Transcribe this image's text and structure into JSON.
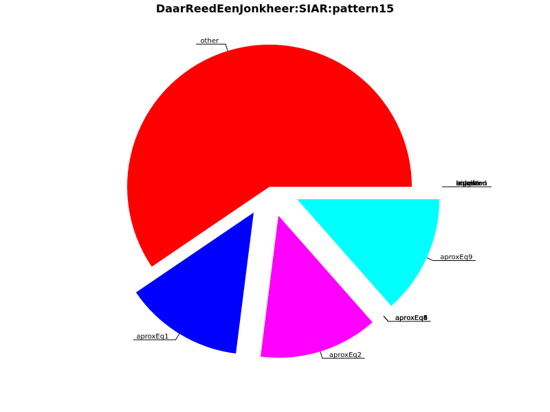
{
  "chart_data": {
    "type": "pie",
    "title": "DaarReedEenJonkheer:SIAR:pattern15",
    "slices": [
      {
        "label": "other",
        "value": 59.5,
        "color": "#ff0000",
        "explode": false
      },
      {
        "label": "aproxEq1",
        "value": 13.5,
        "color": "#0000ff",
        "explode": true
      },
      {
        "label": "aproxEq2",
        "value": 13.5,
        "color": "#ff00ff",
        "explode": true
      },
      {
        "label": "aproxEq4",
        "value": 0,
        "color": "#ffff00",
        "explode": true
      },
      {
        "label": "aproxEq5",
        "value": 0,
        "color": "#ffff00",
        "explode": true
      },
      {
        "label": "aproxEq6",
        "value": 0,
        "color": "#ffff00",
        "explode": true
      },
      {
        "label": "aproxEq8",
        "value": 0,
        "color": "#ffff00",
        "explode": true
      },
      {
        "label": "aproxEq9",
        "value": 13.5,
        "color": "#00ffff",
        "explode": true
      },
      {
        "label": "bigger",
        "value": 0,
        "color": "#00ff00",
        "explode": true
      },
      {
        "label": "smaller",
        "value": 0,
        "color": "#00ff00",
        "explode": true
      },
      {
        "label": "equal",
        "value": 0,
        "color": "#00ff00",
        "explode": true
      },
      {
        "label": "unknown",
        "value": 0,
        "color": "#00ff00",
        "explode": true
      },
      {
        "label": "invalid",
        "value": 0,
        "color": "#00ff00",
        "explode": true
      },
      {
        "label": "untested",
        "value": 0,
        "color": "#00ff00",
        "explode": true
      }
    ]
  }
}
